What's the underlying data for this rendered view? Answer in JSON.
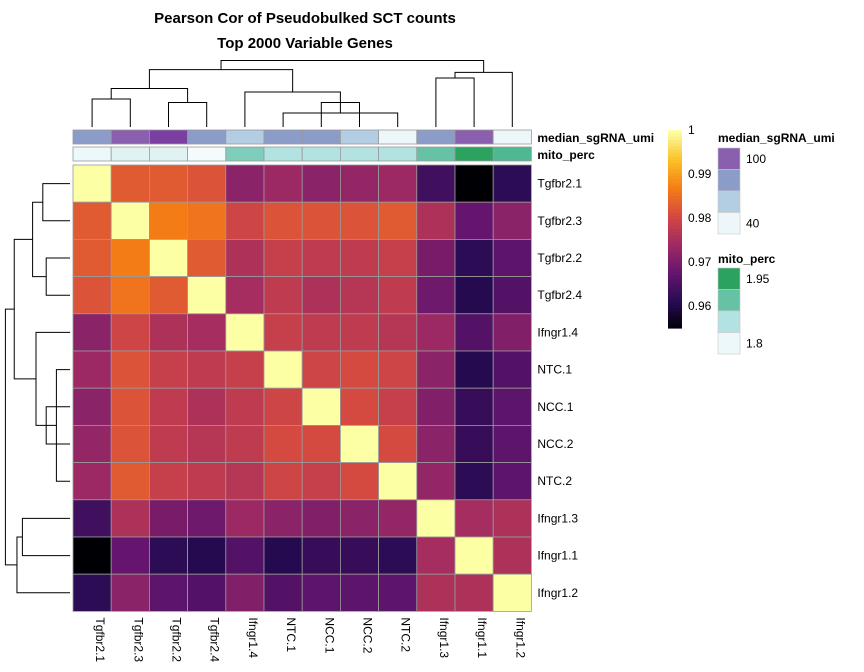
{
  "chart_data": {
    "type": "heatmap",
    "title": "Pearson Cor of Pseudobulked SCT counts",
    "subtitle": "Top 2000 Variable Genes",
    "row_labels": [
      "Tgfbr2.1",
      "Tgfbr2.3",
      "Tgfbr2.2",
      "Tgfbr2.4",
      "Ifngr1.4",
      "NTC.1",
      "NCC.1",
      "NCC.2",
      "NTC.2",
      "Ifngr1.3",
      "Ifngr1.1",
      "Ifngr1.2"
    ],
    "col_labels": [
      "Tgfbr2.1",
      "Tgfbr2.3",
      "Tgfbr2.2",
      "Tgfbr2.4",
      "Ifngr1.4",
      "NTC.1",
      "NCC.1",
      "NCC.2",
      "NTC.2",
      "Ifngr1.3",
      "Ifngr1.1",
      "Ifngr1.2"
    ],
    "values": [
      [
        1.0,
        0.983,
        0.983,
        0.982,
        0.972,
        0.974,
        0.972,
        0.973,
        0.974,
        0.964,
        0.955,
        0.962
      ],
      [
        0.983,
        1.0,
        0.987,
        0.986,
        0.98,
        0.982,
        0.982,
        0.982,
        0.983,
        0.976,
        0.968,
        0.972
      ],
      [
        0.983,
        0.987,
        1.0,
        0.983,
        0.976,
        0.979,
        0.978,
        0.978,
        0.979,
        0.97,
        0.962,
        0.967
      ],
      [
        0.982,
        0.986,
        0.983,
        1.0,
        0.975,
        0.978,
        0.976,
        0.977,
        0.978,
        0.969,
        0.961,
        0.966
      ],
      [
        0.972,
        0.98,
        0.976,
        0.975,
        1.0,
        0.979,
        0.978,
        0.978,
        0.977,
        0.974,
        0.966,
        0.971
      ],
      [
        0.974,
        0.982,
        0.979,
        0.978,
        0.979,
        1.0,
        0.98,
        0.981,
        0.98,
        0.972,
        0.961,
        0.966
      ],
      [
        0.972,
        0.982,
        0.978,
        0.976,
        0.978,
        0.98,
        1.0,
        0.981,
        0.979,
        0.971,
        0.963,
        0.967
      ],
      [
        0.973,
        0.982,
        0.978,
        0.977,
        0.978,
        0.981,
        0.981,
        1.0,
        0.981,
        0.972,
        0.963,
        0.967
      ],
      [
        0.974,
        0.983,
        0.979,
        0.978,
        0.977,
        0.98,
        0.979,
        0.981,
        1.0,
        0.973,
        0.962,
        0.967
      ],
      [
        0.964,
        0.976,
        0.97,
        0.969,
        0.974,
        0.972,
        0.971,
        0.972,
        0.973,
        1.0,
        0.975,
        0.976
      ],
      [
        0.955,
        0.968,
        0.962,
        0.961,
        0.966,
        0.961,
        0.963,
        0.963,
        0.962,
        0.975,
        1.0,
        0.976
      ],
      [
        0.962,
        0.972,
        0.967,
        0.966,
        0.971,
        0.966,
        0.967,
        0.967,
        0.967,
        0.976,
        0.976,
        1.0
      ]
    ],
    "color_scale": {
      "range": [
        0.955,
        1.0
      ],
      "ticks": [
        0.96,
        0.97,
        0.98,
        0.99,
        1
      ],
      "tick_labels": [
        "0.96",
        "0.97",
        "0.98",
        "0.99",
        "1"
      ],
      "colors": [
        "#000004",
        "#280b54",
        "#65156e",
        "#9f2a63",
        "#d44842",
        "#f57d15",
        "#fac228",
        "#fcffa4"
      ]
    },
    "annotations": [
      {
        "name": "median_sgRNA_umi",
        "bins": [
          "#8a5fae",
          "#8b9cc9",
          "#b3cde3",
          "#edf7fa"
        ],
        "tick_labels": [
          "100",
          "40"
        ],
        "col_colors": [
          "#8b9cc9",
          "#8a5fae",
          "#7a3fa0",
          "#8b9cc9",
          "#b3cde3",
          "#8b9cc9",
          "#8b9cc9",
          "#b3cde3",
          "#edf7fa",
          "#8b9cc9",
          "#8a5fae",
          "#edf7fa"
        ]
      },
      {
        "name": "mito_perc",
        "bins": [
          "#2ca25f",
          "#66c2a4",
          "#b2e2e2",
          "#edf8fb"
        ],
        "tick_labels": [
          "1.95",
          "1.8"
        ],
        "col_colors": [
          "#edf8fb",
          "#e0f2f2",
          "#e0f2f2",
          "#f5fbfc",
          "#7fcdbb",
          "#b2e2e2",
          "#b2e2e2",
          "#b2e2e2",
          "#b2e2e2",
          "#66c2a4",
          "#2ca25f",
          "#4db891"
        ]
      }
    ],
    "col_dendrogram": [
      [
        0,
        1,
        0.4
      ],
      [
        2,
        3,
        0.35
      ],
      [
        12,
        13,
        0.55
      ],
      [
        5,
        8,
        0.2
      ],
      [
        6,
        7,
        0.35
      ],
      [
        16,
        15,
        0.45
      ],
      [
        4,
        17,
        0.5
      ],
      [
        14,
        18,
        0.82
      ],
      [
        9,
        10,
        0.7
      ],
      [
        20,
        11,
        0.78
      ],
      [
        19,
        21,
        0.95
      ]
    ],
    "row_dendrogram": [
      [
        0,
        1,
        0.4
      ],
      [
        2,
        3,
        0.35
      ],
      [
        12,
        13,
        0.55
      ],
      [
        5,
        8,
        0.2
      ],
      [
        6,
        7,
        0.35
      ],
      [
        16,
        15,
        0.45
      ],
      [
        4,
        17,
        0.5
      ],
      [
        14,
        18,
        0.82
      ],
      [
        9,
        10,
        0.7
      ],
      [
        20,
        11,
        0.78
      ],
      [
        19,
        21,
        0.95
      ]
    ]
  }
}
